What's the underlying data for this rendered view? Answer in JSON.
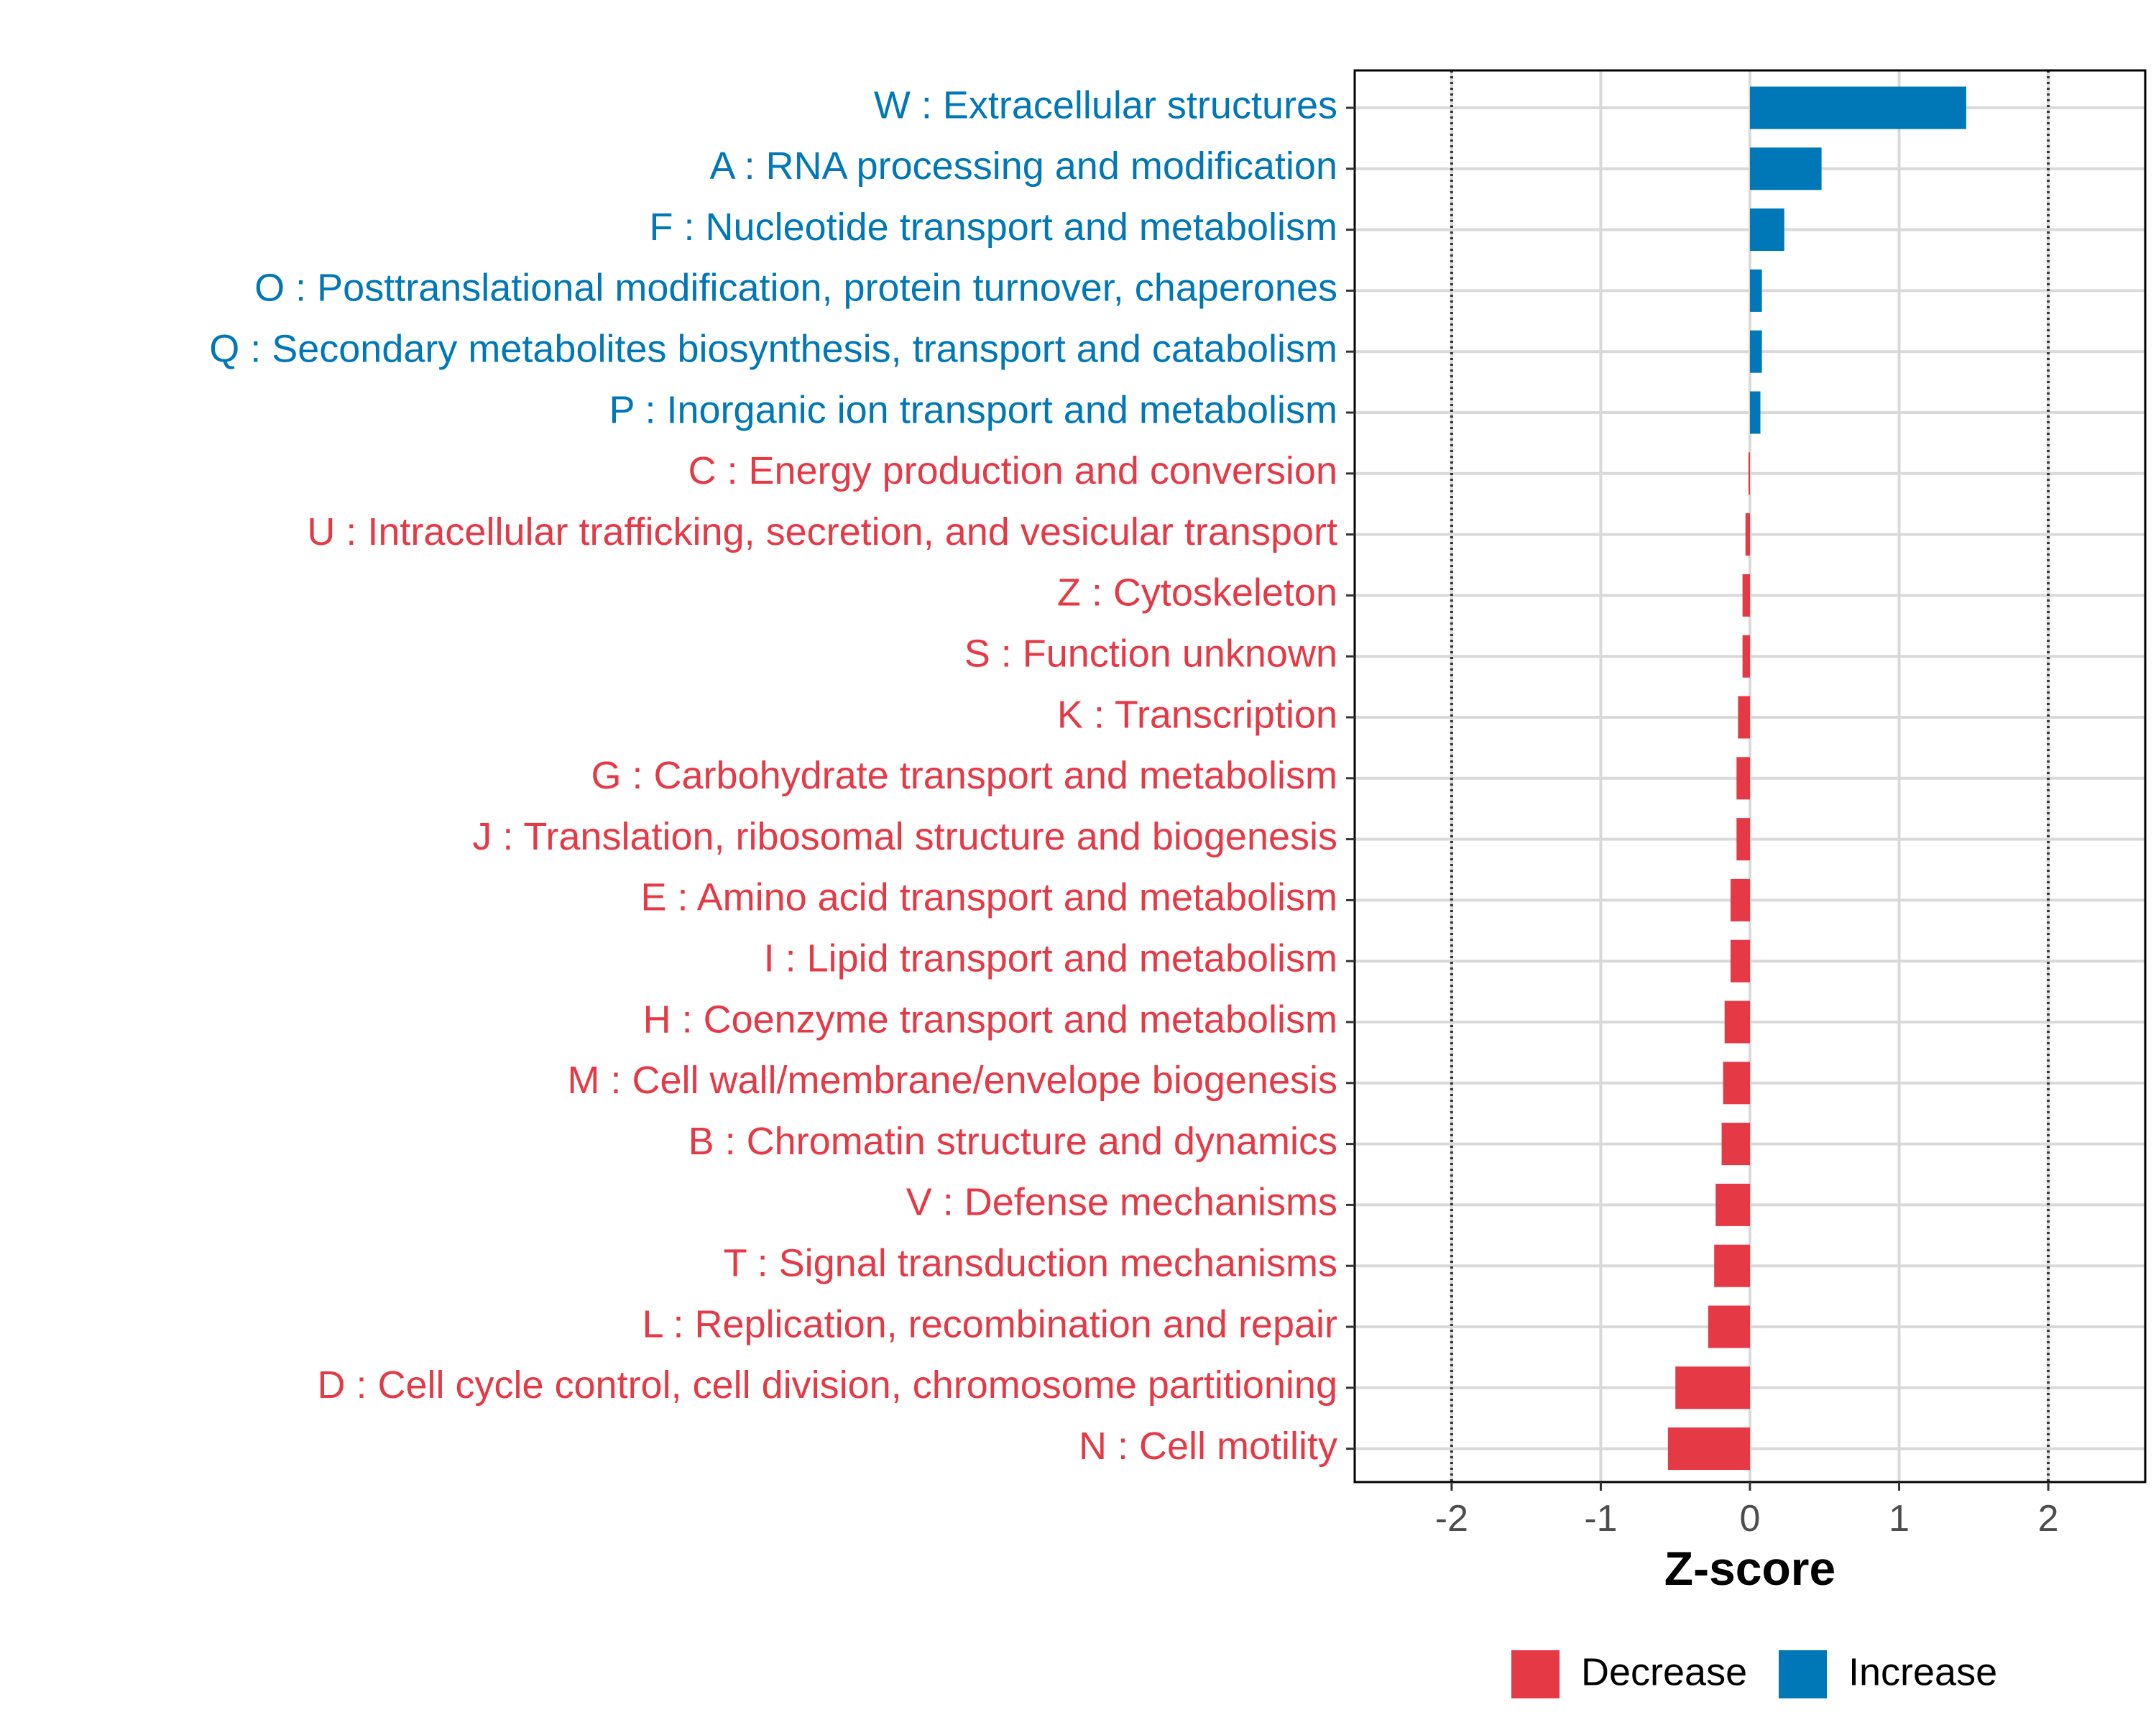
{
  "chart_data": {
    "type": "bar",
    "orientation": "horizontal",
    "title": "",
    "xlabel": "Z-score",
    "ylabel": "",
    "xlim": [
      -2.65,
      2.65
    ],
    "xticks": [
      -2,
      -1,
      0,
      1,
      2
    ],
    "xtick_labels": [
      "-2",
      "-1",
      "0",
      "1",
      "2"
    ],
    "reference_lines": [
      -2,
      2
    ],
    "grid": true,
    "colors": {
      "Decrease": "#e63946",
      "Increase": "#0077b6"
    },
    "categories": [
      "W : Extracellular structures",
      "A : RNA processing and modification",
      "F : Nucleotide transport and metabolism",
      "O : Posttranslational modification, protein turnover, chaperones",
      "Q : Secondary metabolites biosynthesis, transport and catabolism",
      "P : Inorganic ion transport and metabolism",
      "C : Energy production and conversion",
      "U : Intracellular trafficking, secretion, and vesicular transport",
      "Z : Cytoskeleton",
      "S : Function unknown",
      "K : Transcription",
      "G : Carbohydrate transport and metabolism",
      "J : Translation, ribosomal structure and biogenesis",
      "E : Amino acid transport and metabolism",
      "I : Lipid transport and metabolism",
      "H : Coenzyme transport and metabolism",
      "M : Cell wall/membrane/envelope biogenesis",
      "B : Chromatin structure and dynamics",
      "V : Defense mechanisms",
      "T : Signal transduction mechanisms",
      "L : Replication, recombination and repair",
      "D : Cell cycle control, cell division, chromosome partitioning",
      "N : Cell motility"
    ],
    "values": [
      1.45,
      0.48,
      0.23,
      0.08,
      0.08,
      0.07,
      -0.01,
      -0.03,
      -0.05,
      -0.05,
      -0.08,
      -0.09,
      -0.09,
      -0.13,
      -0.13,
      -0.17,
      -0.18,
      -0.19,
      -0.23,
      -0.24,
      -0.28,
      -0.5,
      -0.55
    ],
    "groups": [
      "Increase",
      "Increase",
      "Increase",
      "Increase",
      "Increase",
      "Increase",
      "Decrease",
      "Decrease",
      "Decrease",
      "Decrease",
      "Decrease",
      "Decrease",
      "Decrease",
      "Decrease",
      "Decrease",
      "Decrease",
      "Decrease",
      "Decrease",
      "Decrease",
      "Decrease",
      "Decrease",
      "Decrease",
      "Decrease"
    ],
    "legend": {
      "position": "bottom",
      "entries": [
        {
          "label": "Decrease"
        },
        {
          "label": "Increase"
        }
      ]
    }
  }
}
